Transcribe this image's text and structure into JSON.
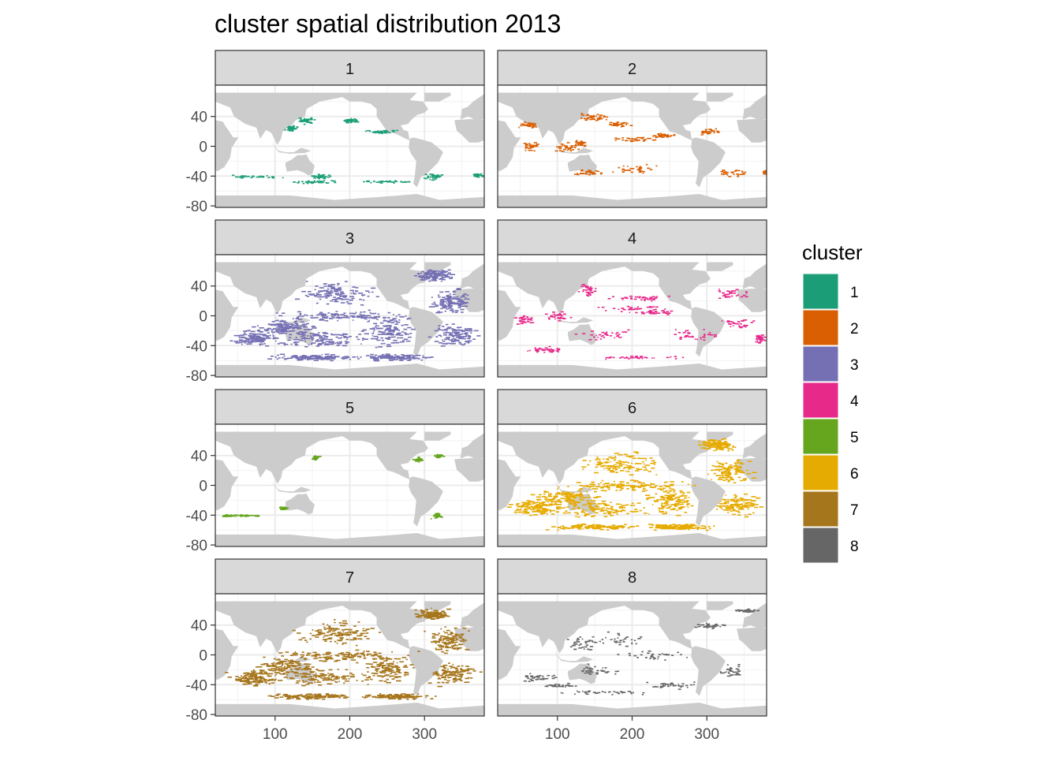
{
  "chart_data": {
    "type": "scatter",
    "title": "cluster spatial distribution 2013",
    "xlabel": "",
    "ylabel": "",
    "xlim": [
      20,
      380
    ],
    "ylim": [
      -82,
      82
    ],
    "x_ticks": [
      100,
      200,
      300
    ],
    "y_ticks": [
      40,
      0,
      -40,
      -80
    ],
    "x_tick_labels": [
      "100",
      "200",
      "300"
    ],
    "y_tick_labels": [
      "40",
      "0",
      "-40",
      "-80"
    ],
    "grid": true,
    "facet_layout": "4 rows x 2 columns",
    "legend": {
      "title": "cluster",
      "placement": "right",
      "entries": [
        {
          "label": "1",
          "color": "#1B9E77"
        },
        {
          "label": "2",
          "color": "#D95F02"
        },
        {
          "label": "3",
          "color": "#7570B3"
        },
        {
          "label": "4",
          "color": "#E7298A"
        },
        {
          "label": "5",
          "color": "#66A61E"
        },
        {
          "label": "6",
          "color": "#E6AB02"
        },
        {
          "label": "7",
          "color": "#A6761D"
        },
        {
          "label": "8",
          "color": "#666666"
        }
      ]
    },
    "land_color": "#CCCCCC",
    "facets": [
      {
        "label": "1",
        "color": "#1B9E77",
        "density": "sparse",
        "regions": [
          [
            140,
            35,
            18,
            6
          ],
          [
            200,
            35,
            10,
            4
          ],
          [
            120,
            25,
            10,
            5
          ],
          [
            70,
            -40,
            50,
            3
          ],
          [
            150,
            -47,
            40,
            3
          ],
          [
            160,
            -40,
            20,
            4
          ],
          [
            310,
            -40,
            15,
            6
          ],
          [
            250,
            -47,
            50,
            2
          ],
          [
            370,
            -38,
            10,
            3
          ],
          [
            240,
            20,
            30,
            3
          ]
        ]
      },
      {
        "label": "2",
        "color": "#D95F02",
        "density": "sparse",
        "regions": [
          [
            150,
            40,
            25,
            7
          ],
          [
            130,
            5,
            12,
            5
          ],
          [
            200,
            10,
            40,
            5
          ],
          [
            240,
            15,
            20,
            4
          ],
          [
            110,
            0,
            20,
            10
          ],
          [
            65,
            0,
            20,
            8
          ],
          [
            140,
            -35,
            25,
            5
          ],
          [
            200,
            -30,
            40,
            8
          ],
          [
            330,
            -35,
            30,
            6
          ],
          [
            300,
            20,
            20,
            6
          ],
          [
            60,
            30,
            15,
            5
          ],
          [
            380,
            -35,
            8,
            5
          ],
          [
            180,
            30,
            20,
            6
          ]
        ]
      },
      {
        "label": "3",
        "color": "#7570B3",
        "density": "dense",
        "regions": [
          [
            180,
            30,
            70,
            20
          ],
          [
            190,
            0,
            110,
            10
          ],
          [
            160,
            -30,
            80,
            15
          ],
          [
            110,
            -15,
            50,
            15
          ],
          [
            70,
            -30,
            40,
            15
          ],
          [
            250,
            -20,
            40,
            25
          ],
          [
            330,
            20,
            35,
            20
          ],
          [
            340,
            -25,
            40,
            20
          ],
          [
            310,
            55,
            30,
            10
          ],
          [
            150,
            -55,
            80,
            5
          ],
          [
            260,
            -55,
            60,
            5
          ]
        ]
      },
      {
        "label": "4",
        "color": "#E7298A",
        "density": "sparse",
        "regions": [
          [
            140,
            35,
            15,
            10
          ],
          [
            210,
            25,
            60,
            6
          ],
          [
            230,
            5,
            40,
            3
          ],
          [
            200,
            10,
            60,
            6
          ],
          [
            55,
            -5,
            15,
            8
          ],
          [
            100,
            0,
            20,
            8
          ],
          [
            330,
            30,
            30,
            8
          ],
          [
            340,
            -10,
            30,
            8
          ],
          [
            160,
            -25,
            60,
            10
          ],
          [
            280,
            -25,
            40,
            10
          ],
          [
            80,
            -45,
            40,
            5
          ],
          [
            200,
            -55,
            80,
            3
          ],
          [
            370,
            -30,
            8,
            8
          ]
        ]
      },
      {
        "label": "5",
        "color": "#66A61E",
        "density": "sparse",
        "regions": [
          [
            153,
            38,
            6,
            4
          ],
          [
            290,
            35,
            8,
            4
          ],
          [
            318,
            40,
            10,
            3
          ],
          [
            315,
            -40,
            8,
            5
          ],
          [
            60,
            -40,
            30,
            2
          ],
          [
            110,
            -30,
            6,
            3
          ],
          [
            35,
            -40,
            8,
            2
          ]
        ]
      },
      {
        "label": "6",
        "color": "#E6AB02",
        "density": "dense",
        "regions": [
          [
            180,
            30,
            70,
            20
          ],
          [
            190,
            0,
            110,
            10
          ],
          [
            160,
            -30,
            80,
            15
          ],
          [
            110,
            -15,
            50,
            15
          ],
          [
            70,
            -30,
            40,
            15
          ],
          [
            250,
            -20,
            40,
            25
          ],
          [
            330,
            20,
            35,
            20
          ],
          [
            340,
            -25,
            40,
            20
          ],
          [
            310,
            55,
            30,
            10
          ],
          [
            150,
            -55,
            80,
            5
          ],
          [
            260,
            -55,
            60,
            5
          ]
        ]
      },
      {
        "label": "7",
        "color": "#A6761D",
        "density": "dense",
        "regions": [
          [
            180,
            30,
            70,
            20
          ],
          [
            190,
            0,
            110,
            10
          ],
          [
            160,
            -30,
            80,
            15
          ],
          [
            110,
            -15,
            50,
            15
          ],
          [
            70,
            -30,
            40,
            15
          ],
          [
            250,
            -20,
            40,
            25
          ],
          [
            330,
            20,
            35,
            20
          ],
          [
            340,
            -25,
            40,
            20
          ],
          [
            310,
            55,
            30,
            10
          ],
          [
            150,
            -55,
            80,
            5
          ],
          [
            260,
            -55,
            60,
            5
          ]
        ]
      },
      {
        "label": "8",
        "color": "#666666",
        "density": "sparse",
        "regions": [
          [
            130,
            15,
            25,
            15
          ],
          [
            180,
            20,
            40,
            15
          ],
          [
            220,
            0,
            60,
            8
          ],
          [
            150,
            -20,
            40,
            10
          ],
          [
            70,
            -30,
            30,
            10
          ],
          [
            160,
            -50,
            80,
            4
          ],
          [
            250,
            -40,
            40,
            6
          ],
          [
            300,
            40,
            30,
            5
          ],
          [
            330,
            -20,
            20,
            10
          ],
          [
            350,
            60,
            20,
            4
          ],
          [
            100,
            -40,
            30,
            4
          ]
        ]
      }
    ]
  }
}
